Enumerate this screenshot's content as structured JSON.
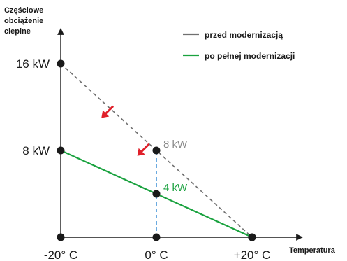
{
  "chart_data": {
    "type": "line",
    "ylabel_lines": [
      "Częściowe",
      "obciążenie",
      "cieplne"
    ],
    "xlabel": "Temperatura",
    "x_ticks": [
      {
        "value": -20,
        "label": "-20° C"
      },
      {
        "value": 0,
        "label": "0° C"
      },
      {
        "value": 20,
        "label": "+20° C"
      }
    ],
    "y_ticks": [
      {
        "value": 8,
        "label": "8 kW"
      },
      {
        "value": 16,
        "label": "16 kW"
      }
    ],
    "xlim": [
      -20,
      20
    ],
    "ylim": [
      0,
      16
    ],
    "series": [
      {
        "name": "przed modernizacją",
        "style": "dashed",
        "color": "#707070",
        "points": [
          {
            "x": -20,
            "y": 16
          },
          {
            "x": 0,
            "y": 8
          },
          {
            "x": 20,
            "y": 0
          }
        ]
      },
      {
        "name": "po pełnej modernizacji",
        "style": "solid",
        "color": "#1aa23f",
        "points": [
          {
            "x": -20,
            "y": 8
          },
          {
            "x": 0,
            "y": 4
          },
          {
            "x": 20,
            "y": 0
          }
        ]
      }
    ],
    "guide": {
      "x": 0,
      "y_from": 0,
      "y_to": 8,
      "color": "#3b8fd6",
      "style": "dashed"
    },
    "point_labels": [
      {
        "x": 0,
        "y": 8,
        "text": "8 kW",
        "color": "#8a8a8a"
      },
      {
        "x": 0,
        "y": 4,
        "text": "4 kW",
        "color": "#1aa23f"
      }
    ],
    "arrows": [
      {
        "x": -11.5,
        "y": 11.0,
        "color": "#e0202a"
      },
      {
        "x": -4.0,
        "y": 7.5,
        "color": "#e0202a"
      }
    ],
    "legend_placement": "top-right",
    "grid": false
  }
}
